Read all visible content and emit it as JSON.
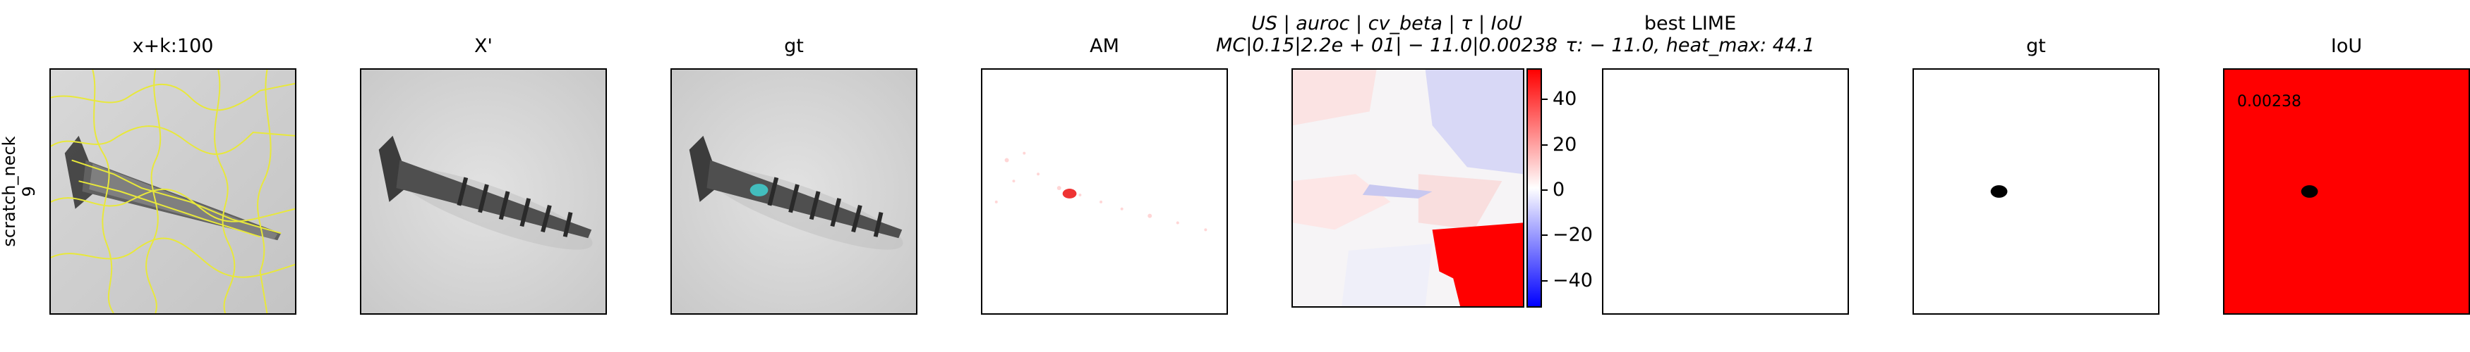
{
  "row_label": [
    "scratch_neck",
    "9"
  ],
  "panel_titles": [
    {
      "line1": "x+k:100",
      "line2": ""
    },
    {
      "line1": "X'",
      "line2": ""
    },
    {
      "line1": "gt",
      "line2": ""
    },
    {
      "line1": "AM",
      "line2": ""
    },
    {
      "line1": "US | auroc | cv_beta | τ | IoU",
      "line2": "MC|0.15|2.2e + 01| − 11.0|0.00238"
    },
    {
      "line1": "best LIME",
      "line2": "τ: − 11.0, heat_max: 44.1"
    },
    {
      "line1": "gt",
      "line2": ""
    },
    {
      "line1": "IoU",
      "line2": ""
    }
  ],
  "iou_value_text": "0.00238",
  "chart_data": {
    "type": "heatmap",
    "colorbar": {
      "ticks": [
        40,
        20,
        0,
        -20,
        -40
      ],
      "tick_labels": [
        "40",
        "20",
        "0",
        "−20",
        "−40"
      ],
      "range": [
        -44.1,
        44.1
      ],
      "colormap": "bwr"
    },
    "colors": {
      "contour": "#e8e83a",
      "gt_mask": "#000000",
      "iou_fill": "#ff0000",
      "am_hot": "#ff3333"
    }
  }
}
